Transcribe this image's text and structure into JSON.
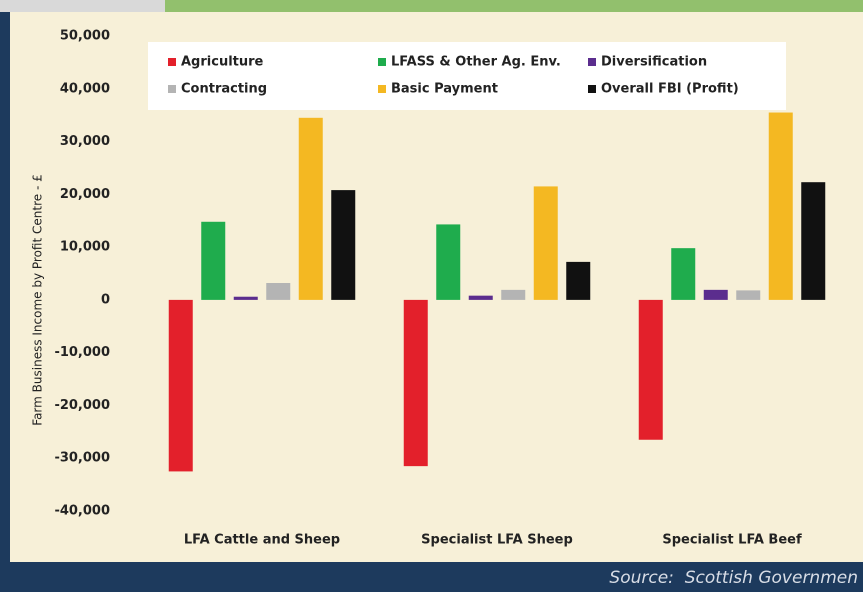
{
  "chart_data": {
    "type": "bar",
    "y_label": "Farm Business Income by Profit Centre - £",
    "categories": [
      "LFA Cattle and Sheep",
      "Specialist LFA Sheep",
      "Specialist LFA Beef"
    ],
    "series": [
      {
        "name": "Agriculture",
        "color": "#e3202b",
        "values": [
          -32500,
          -31500,
          -26500
        ]
      },
      {
        "name": "LFASS & Other Ag. Env.",
        "color": "#1fac4d",
        "values": [
          14800,
          14300,
          9800
        ]
      },
      {
        "name": "Diversification",
        "color": "#5b2d8e",
        "values": [
          600,
          800,
          1900
        ]
      },
      {
        "name": "Contracting",
        "color": "#b4b4b4",
        "values": [
          3200,
          1900,
          1800
        ]
      },
      {
        "name": "Basic Payment",
        "color": "#f4b822",
        "values": [
          34500,
          21500,
          35500
        ]
      },
      {
        "name": "Overall FBI (Profit)",
        "color": "#111111",
        "values": [
          20800,
          7200,
          22300
        ]
      }
    ],
    "ylim": [
      -40000,
      50000
    ],
    "yticks": [
      {
        "value": -40000,
        "label": "-40,000"
      },
      {
        "value": -30000,
        "label": "-30,000"
      },
      {
        "value": -20000,
        "label": "-20,000"
      },
      {
        "value": -10000,
        "label": "-10,000"
      },
      0,
      {
        "value": 10000,
        "label": "10,000"
      },
      {
        "value": 20000,
        "label": "20,000"
      },
      {
        "value": 30000,
        "label": "30,000"
      },
      {
        "value": 40000,
        "label": "40,000"
      },
      {
        "value": 50000,
        "label": "50,000"
      }
    ],
    "legend": "top",
    "source": "Source:  Scottish Governmen"
  }
}
